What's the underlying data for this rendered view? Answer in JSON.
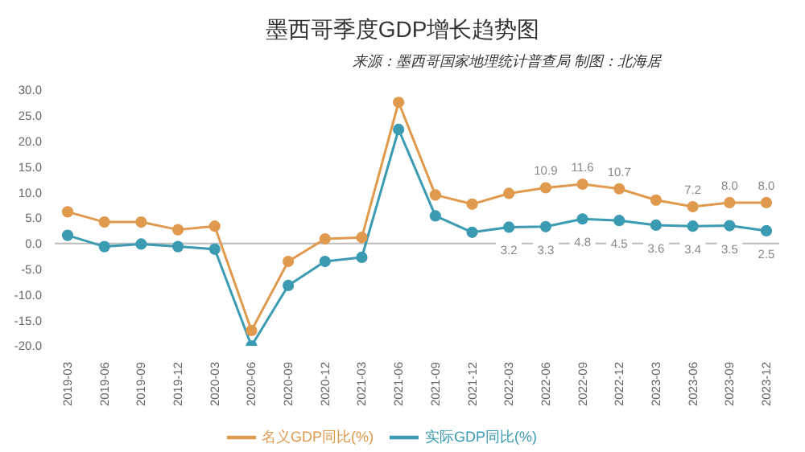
{
  "chart_data": {
    "type": "line",
    "title": "墨西哥季度GDP增长趋势图",
    "subtitle": "来源：墨西哥国家地理统计普查局 制图：北海居",
    "categories": [
      "2019-03",
      "2019-06",
      "2019-09",
      "2019-12",
      "2020-03",
      "2020-06",
      "2020-09",
      "2020-12",
      "2021-03",
      "2021-06",
      "2021-09",
      "2021-12",
      "2022-03",
      "2022-06",
      "2022-09",
      "2022-12",
      "2023-03",
      "2023-06",
      "2023-09",
      "2023-12"
    ],
    "series": [
      {
        "name": "名义GDP同比(%)",
        "color": "#e09a4e",
        "values": [
          6.2,
          4.2,
          4.2,
          2.7,
          3.4,
          -17.0,
          -3.5,
          0.9,
          1.2,
          27.6,
          9.5,
          7.7,
          9.8,
          10.9,
          11.6,
          10.7,
          8.5,
          7.2,
          8.0,
          8.0
        ],
        "value_labels": [
          null,
          null,
          null,
          null,
          null,
          null,
          null,
          null,
          null,
          null,
          null,
          null,
          null,
          "10.9",
          "11.6",
          "10.7",
          null,
          "7.2",
          "8.0",
          "8.0"
        ]
      },
      {
        "name": "实际GDP同比(%)",
        "color": "#3a9bb2",
        "values": [
          1.6,
          -0.6,
          -0.1,
          -0.6,
          -1.1,
          -20.0,
          -8.2,
          -3.5,
          -2.7,
          22.3,
          5.4,
          2.2,
          3.2,
          3.3,
          4.8,
          4.5,
          3.6,
          3.4,
          3.5,
          2.5
        ],
        "value_labels": [
          null,
          null,
          null,
          null,
          null,
          null,
          null,
          null,
          null,
          null,
          null,
          null,
          "3.2",
          "3.3",
          "4.8",
          "4.5",
          "3.6",
          "3.4",
          "3.5",
          "2.5"
        ]
      }
    ],
    "ylim": [
      -20,
      30
    ],
    "yticks": [
      {
        "value": 30,
        "label": "30.0"
      },
      {
        "value": 25,
        "label": "25.0"
      },
      {
        "value": 20,
        "label": "20.0"
      },
      {
        "value": 15,
        "label": "15.0"
      },
      {
        "value": 10,
        "label": "10.0"
      },
      {
        "value": 5,
        "label": "5.0"
      },
      {
        "value": 0,
        "label": "0.0"
      },
      {
        "value": -5,
        "label": "-5.0"
      },
      {
        "value": -10,
        "label": "-10.0"
      },
      {
        "value": -15,
        "label": "-15.0"
      },
      {
        "value": -20,
        "label": "-20.0"
      }
    ],
    "ref_lines": [
      {
        "axis": "y",
        "value": 0,
        "color": "#bbbbbb"
      }
    ],
    "legend": "bottom",
    "marker": "circle",
    "line_style": "solid",
    "grid": false
  }
}
